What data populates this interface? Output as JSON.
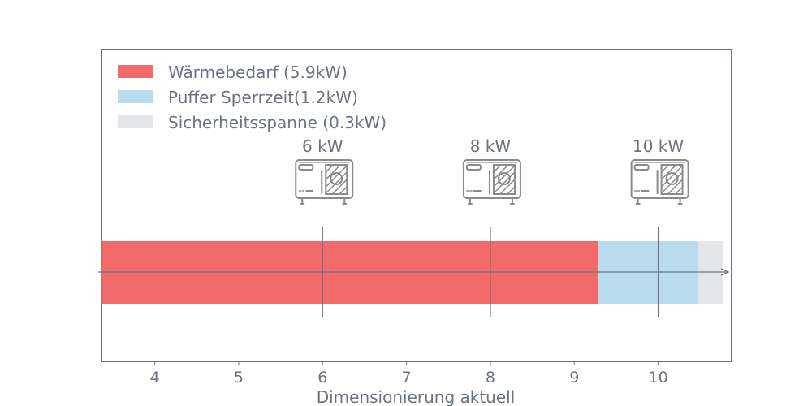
{
  "chart_data": {
    "type": "bar",
    "orientation": "horizontal-stacked",
    "xlabel": "Dimensionierung aktuell",
    "xlim": [
      3.37,
      10.87
    ],
    "xticks": [
      4,
      5,
      6,
      7,
      8,
      9,
      10
    ],
    "xtick_labels": [
      "4",
      "5",
      "6",
      "7",
      "8",
      "9",
      "10"
    ],
    "grid": false,
    "legend_position": "top-left",
    "series": [
      {
        "name": "Wärmebedarf (5.9kW)",
        "value": 5.92,
        "color": "#f26a6a"
      },
      {
        "name": "Puffer Sperrzeit(1.2kW)",
        "value": 1.18,
        "color": "#b8dcee"
      },
      {
        "name": "Sicherheitsspanne (0.3kW)",
        "value": 0.3,
        "color": "#e5e6ea"
      }
    ],
    "heat_pump_units": [
      {
        "label": "6 kW",
        "x": 6
      },
      {
        "label": "8 kW",
        "x": 8
      },
      {
        "label": "10 kW",
        "x": 10
      }
    ],
    "colors": {
      "axis": "#6b7280",
      "icon": "#8a8a8a"
    }
  }
}
